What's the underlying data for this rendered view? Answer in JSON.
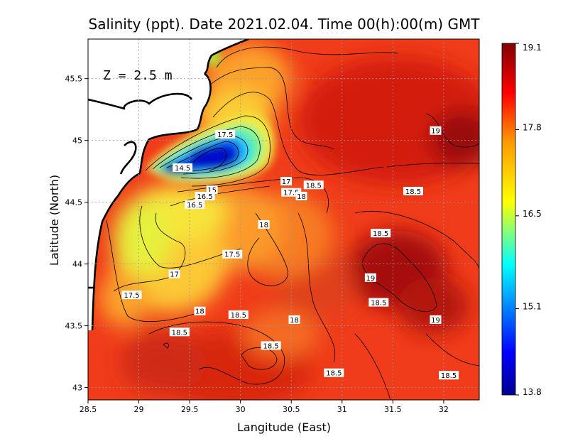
{
  "title": "Salinity (ppt). Date 2021.02.04. Time 00(h):00(m) GMT",
  "depth_label": "Z = 2.5 m",
  "x_axis": {
    "label": "Langitude (East)",
    "ticks": [
      "28.5",
      "29",
      "29.5",
      "30",
      "30.5",
      "31",
      "31.5",
      "32"
    ],
    "values": [
      28.5,
      29,
      29.5,
      30,
      30.5,
      31,
      31.5,
      32
    ],
    "range": [
      28.5,
      32.35
    ]
  },
  "y_axis": {
    "label": "Latitude (North)",
    "ticks": [
      "43",
      "43.5",
      "44",
      "44.5",
      "45",
      "45.5"
    ],
    "values": [
      43,
      43.5,
      44,
      44.5,
      45,
      45.5
    ],
    "range": [
      42.9,
      45.82
    ]
  },
  "colorbar": {
    "ticks": [
      "19.1",
      "17.8",
      "16.5",
      "15.1",
      "13.8"
    ],
    "values": [
      19.1,
      17.8,
      16.5,
      15.1,
      13.8
    ],
    "min": 13.8,
    "max": 19.1,
    "colors": [
      "#00008f",
      "#0000ff",
      "#00ffff",
      "#ffff00",
      "#ff9900",
      "#ff0000",
      "#800000"
    ]
  },
  "land_color": "#ffffff",
  "coastline_color": "#000000",
  "contour_labels": [
    {
      "text": "17.5",
      "lon": 29.85,
      "lat": 45.05
    },
    {
      "text": "14.5",
      "lon": 29.43,
      "lat": 44.78
    },
    {
      "text": "15",
      "lon": 29.72,
      "lat": 44.6
    },
    {
      "text": "16.5",
      "lon": 29.65,
      "lat": 44.55
    },
    {
      "text": "16.5",
      "lon": 29.55,
      "lat": 44.48
    },
    {
      "text": "17",
      "lon": 30.45,
      "lat": 44.67
    },
    {
      "text": "18.5",
      "lon": 30.72,
      "lat": 44.64
    },
    {
      "text": "17.5",
      "lon": 30.5,
      "lat": 44.58
    },
    {
      "text": "18",
      "lon": 30.6,
      "lat": 44.55
    },
    {
      "text": "19",
      "lon": 31.92,
      "lat": 45.08
    },
    {
      "text": "18.5",
      "lon": 31.7,
      "lat": 44.59
    },
    {
      "text": "18",
      "lon": 30.23,
      "lat": 44.32
    },
    {
      "text": "18.5",
      "lon": 31.38,
      "lat": 44.25
    },
    {
      "text": "17.5",
      "lon": 29.92,
      "lat": 44.08
    },
    {
      "text": "17",
      "lon": 29.35,
      "lat": 43.92
    },
    {
      "text": "19",
      "lon": 31.28,
      "lat": 43.89
    },
    {
      "text": "17.5",
      "lon": 28.93,
      "lat": 43.75
    },
    {
      "text": "18.5",
      "lon": 31.36,
      "lat": 43.69
    },
    {
      "text": "18",
      "lon": 29.6,
      "lat": 43.62
    },
    {
      "text": "18.5",
      "lon": 29.98,
      "lat": 43.59
    },
    {
      "text": "18",
      "lon": 30.53,
      "lat": 43.55
    },
    {
      "text": "19",
      "lon": 31.92,
      "lat": 43.55
    },
    {
      "text": "18.5",
      "lon": 29.4,
      "lat": 43.45
    },
    {
      "text": "18.5",
      "lon": 30.3,
      "lat": 43.34
    },
    {
      "text": "18.5",
      "lon": 30.92,
      "lat": 43.12
    },
    {
      "text": "18.5",
      "lon": 32.05,
      "lat": 43.1
    }
  ]
}
